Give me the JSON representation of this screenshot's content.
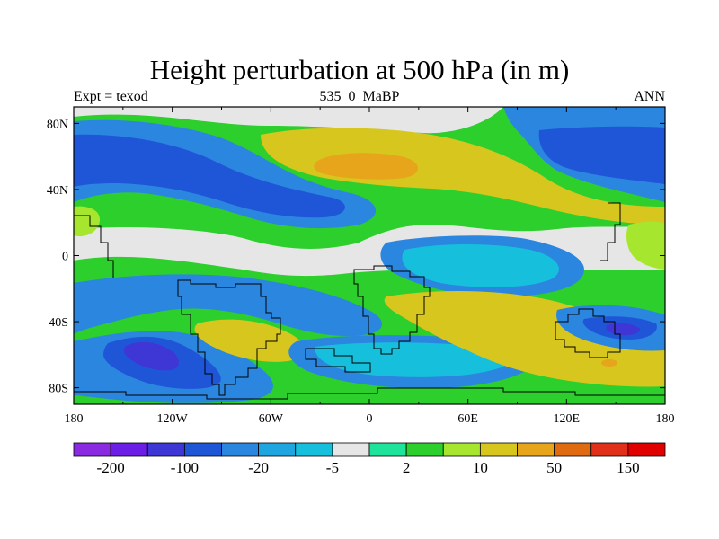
{
  "title": "Height perturbation at 500 hPa (in m)",
  "left_string": "Expt = texod",
  "center_string": "535_0_MaBP",
  "right_string": "ANN",
  "axes": {
    "x_ticks": [
      "180",
      "120W",
      "60W",
      "0",
      "60E",
      "120E",
      "180"
    ],
    "y_ticks": [
      "80N",
      "40N",
      "0",
      "40S",
      "80S"
    ]
  },
  "colorbar": {
    "colors": [
      "#8a2be2",
      "#6a1ee6",
      "#3f36d6",
      "#1f56d8",
      "#2b86e0",
      "#1fa6e0",
      "#16c0dc",
      "#e6e6e6",
      "#1ee39a",
      "#2ccf2c",
      "#a6e62e",
      "#d6c61e",
      "#e6a51a",
      "#e06a10",
      "#e0301a",
      "#e00000"
    ],
    "labels": [
      "-200",
      "-100",
      "-20",
      "-5",
      "2",
      "10",
      "50",
      "150"
    ]
  },
  "legend_colors": {
    "near_zero": "#e6e6e6",
    "cyan": "#16c0dc",
    "light_blue": "#2b86e0",
    "blue": "#1f56d8",
    "green": "#2ccf2c",
    "yellow_green": "#a6e62e",
    "olive": "#d6c61e",
    "orange": "#e6a51a",
    "dark_orange": "#e06a10",
    "purple_blue": "#3f36d6"
  }
}
